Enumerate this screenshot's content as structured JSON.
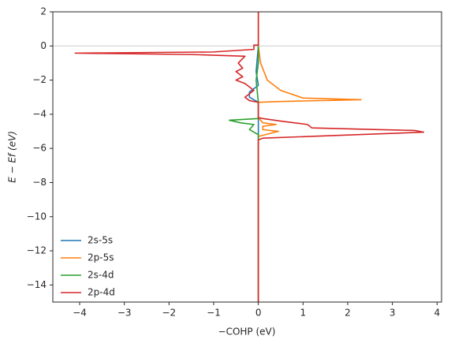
{
  "chart_data": {
    "type": "line",
    "xlabel": "−COHP (eV)",
    "ylabel": "E − Ef (eV)",
    "xlim": [
      -4.6,
      4.1
    ],
    "ylim": [
      -15,
      2
    ],
    "xticks": [
      {
        "value": -4,
        "label": "−4"
      },
      {
        "value": -3,
        "label": "−3"
      },
      {
        "value": -2,
        "label": "−2"
      },
      {
        "value": -1,
        "label": "−1"
      },
      0,
      1,
      2,
      3,
      4
    ],
    "yticks": [
      2,
      0,
      {
        "value": -2,
        "label": "−2"
      },
      {
        "value": -4,
        "label": "−4"
      },
      {
        "value": -6,
        "label": "−6"
      },
      {
        "value": -8,
        "label": "−8"
      },
      {
        "value": -10,
        "label": "−10"
      },
      {
        "value": -12,
        "label": "−12"
      },
      {
        "value": -14,
        "label": "−14"
      }
    ],
    "hline": 0,
    "legend": "lower left",
    "series": [
      {
        "name": "2s-5s",
        "color": "#1f77b4",
        "y": [
          -15,
          -3.3,
          -3.0,
          -2.7,
          -2.3,
          -1.5,
          0
        ],
        "values": [
          0,
          0,
          -0.2,
          -0.2,
          0,
          -0.05,
          0
        ]
      },
      {
        "name": "2p-5s",
        "color": "#ff7f0e",
        "y": [
          -15,
          -5.3,
          -5.0,
          -4.9,
          -4.7,
          -4.6,
          -4.5,
          -4.2,
          -3.3,
          -3.25,
          -3.15,
          -3.05,
          -2.6,
          -2.0,
          -1.0,
          0,
          2
        ],
        "values": [
          0,
          0,
          0.45,
          0.1,
          0.1,
          0.4,
          0.1,
          0,
          0,
          0.5,
          2.3,
          1.0,
          0.5,
          0.2,
          0.05,
          0,
          0
        ]
      },
      {
        "name": "2s-4d",
        "color": "#2ca02c",
        "y": [
          -15,
          -5.2,
          -4.9,
          -4.6,
          -4.5,
          -4.35,
          -4.25,
          -3.3,
          -2.0,
          -1.0,
          0
        ],
        "values": [
          0,
          0,
          -0.2,
          -0.1,
          -0.4,
          -0.65,
          0,
          0,
          -0.05,
          0,
          0
        ]
      },
      {
        "name": "2p-4d",
        "color": "#d62728",
        "y": [
          -15,
          -5.5,
          -5.4,
          -5.05,
          -4.95,
          -4.8,
          -4.6,
          -4.4,
          -4.25,
          -4.2,
          -3.3,
          -3.2,
          -3.0,
          -2.6,
          -2.2,
          -2.0,
          -1.8,
          -1.5,
          -1.3,
          -1.0,
          -0.6,
          -0.5,
          -0.42,
          -0.35,
          -0.2,
          0.05,
          0.05,
          2
        ],
        "values": [
          0,
          0,
          0.1,
          3.7,
          3.5,
          1.2,
          1.1,
          0.5,
          0.1,
          0,
          0,
          -0.2,
          -0.3,
          -0.1,
          -0.3,
          -0.5,
          -0.35,
          -0.5,
          -0.35,
          -0.45,
          -0.3,
          -1.5,
          -4.1,
          -1.0,
          -0.1,
          -0.1,
          0,
          0
        ]
      }
    ]
  }
}
